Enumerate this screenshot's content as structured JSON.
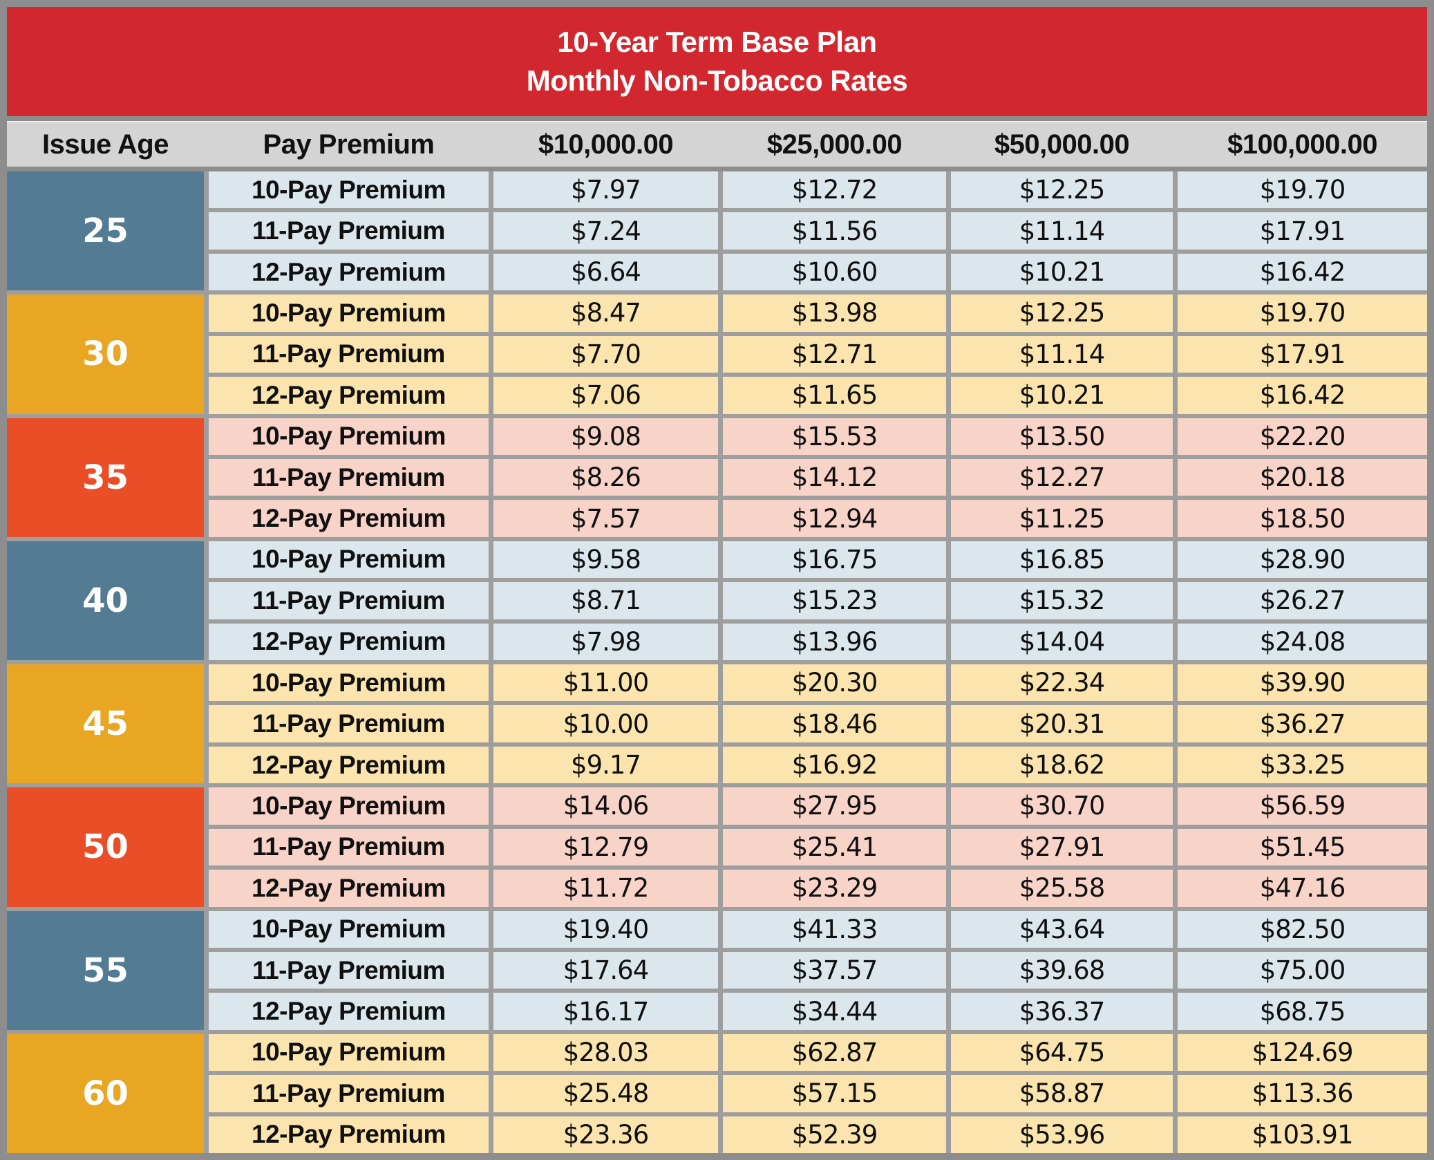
{
  "title": {
    "line1": "10-Year Term Base Plan",
    "line2": "Monthly Non-Tobacco Rates"
  },
  "columns": [
    "Issue Age",
    "Pay Premium",
    "$10,000.00",
    "$25,000.00",
    "$50,000.00",
    "$100,000.00"
  ],
  "row_labels": [
    "10-Pay Premium",
    "11-Pay Premium",
    "12-Pay Premium"
  ],
  "age_groups": [
    {
      "age": "25",
      "theme": "blue",
      "rows": [
        [
          "$7.97",
          "$12.72",
          "$12.25",
          "$19.70"
        ],
        [
          "$7.24",
          "$11.56",
          "$11.14",
          "$17.91"
        ],
        [
          "$6.64",
          "$10.60",
          "$10.21",
          "$16.42"
        ]
      ]
    },
    {
      "age": "30",
      "theme": "yellow",
      "rows": [
        [
          "$8.47",
          "$13.98",
          "$12.25",
          "$19.70"
        ],
        [
          "$7.70",
          "$12.71",
          "$11.14",
          "$17.91"
        ],
        [
          "$7.06",
          "$11.65",
          "$10.21",
          "$16.42"
        ]
      ]
    },
    {
      "age": "35",
      "theme": "red",
      "rows": [
        [
          "$9.08",
          "$15.53",
          "$13.50",
          "$22.20"
        ],
        [
          "$8.26",
          "$14.12",
          "$12.27",
          "$20.18"
        ],
        [
          "$7.57",
          "$12.94",
          "$11.25",
          "$18.50"
        ]
      ]
    },
    {
      "age": "40",
      "theme": "blue",
      "rows": [
        [
          "$9.58",
          "$16.75",
          "$16.85",
          "$28.90"
        ],
        [
          "$8.71",
          "$15.23",
          "$15.32",
          "$26.27"
        ],
        [
          "$7.98",
          "$13.96",
          "$14.04",
          "$24.08"
        ]
      ]
    },
    {
      "age": "45",
      "theme": "yellow",
      "rows": [
        [
          "$11.00",
          "$20.30",
          "$22.34",
          "$39.90"
        ],
        [
          "$10.00",
          "$18.46",
          "$20.31",
          "$36.27"
        ],
        [
          "$9.17",
          "$16.92",
          "$18.62",
          "$33.25"
        ]
      ]
    },
    {
      "age": "50",
      "theme": "red",
      "rows": [
        [
          "$14.06",
          "$27.95",
          "$30.70",
          "$56.59"
        ],
        [
          "$12.79",
          "$25.41",
          "$27.91",
          "$51.45"
        ],
        [
          "$11.72",
          "$23.29",
          "$25.58",
          "$47.16"
        ]
      ]
    },
    {
      "age": "55",
      "theme": "blue",
      "rows": [
        [
          "$19.40",
          "$41.33",
          "$43.64",
          "$82.50"
        ],
        [
          "$17.64",
          "$37.57",
          "$39.68",
          "$75.00"
        ],
        [
          "$16.17",
          "$34.44",
          "$36.37",
          "$68.75"
        ]
      ]
    },
    {
      "age": "60",
      "theme": "yellow",
      "rows": [
        [
          "$28.03",
          "$62.87",
          "$64.75",
          "$124.69"
        ],
        [
          "$25.48",
          "$57.15",
          "$58.87",
          "$113.36"
        ],
        [
          "$23.36",
          "$52.39",
          "$53.96",
          "$103.91"
        ]
      ]
    }
  ],
  "colors": {
    "title_bar": "#d2272e",
    "title_text": "#ffffff",
    "header_band": "#d4d4d4",
    "frame_gray": "#8d8d8d",
    "grid_gap_gray": "#9e9e9e",
    "age_blue": "#537b93",
    "age_yellow": "#e9a622",
    "age_red": "#e94e26",
    "row_blue": "#dbe7ed",
    "row_yellow": "#fbe4ae",
    "row_red": "#f8d3c8"
  },
  "chart_data": {
    "type": "table",
    "title": "10-Year Term Base Plan — Monthly Non-Tobacco Rates",
    "columns": [
      "Issue Age",
      "Pay Premium",
      "$10,000.00",
      "$25,000.00",
      "$50,000.00",
      "$100,000.00"
    ],
    "rows": [
      [
        "25",
        "10-Pay Premium",
        "$7.97",
        "$12.72",
        "$12.25",
        "$19.70"
      ],
      [
        "25",
        "11-Pay Premium",
        "$7.24",
        "$11.56",
        "$11.14",
        "$17.91"
      ],
      [
        "25",
        "12-Pay Premium",
        "$6.64",
        "$10.60",
        "$10.21",
        "$16.42"
      ],
      [
        "30",
        "10-Pay Premium",
        "$8.47",
        "$13.98",
        "$12.25",
        "$19.70"
      ],
      [
        "30",
        "11-Pay Premium",
        "$7.70",
        "$12.71",
        "$11.14",
        "$17.91"
      ],
      [
        "30",
        "12-Pay Premium",
        "$7.06",
        "$11.65",
        "$10.21",
        "$16.42"
      ],
      [
        "35",
        "10-Pay Premium",
        "$9.08",
        "$15.53",
        "$13.50",
        "$22.20"
      ],
      [
        "35",
        "11-Pay Premium",
        "$8.26",
        "$14.12",
        "$12.27",
        "$20.18"
      ],
      [
        "35",
        "12-Pay Premium",
        "$7.57",
        "$12.94",
        "$11.25",
        "$18.50"
      ],
      [
        "40",
        "10-Pay Premium",
        "$9.58",
        "$16.75",
        "$16.85",
        "$28.90"
      ],
      [
        "40",
        "11-Pay Premium",
        "$8.71",
        "$15.23",
        "$15.32",
        "$26.27"
      ],
      [
        "40",
        "12-Pay Premium",
        "$7.98",
        "$13.96",
        "$14.04",
        "$24.08"
      ],
      [
        "45",
        "10-Pay Premium",
        "$11.00",
        "$20.30",
        "$22.34",
        "$39.90"
      ],
      [
        "45",
        "11-Pay Premium",
        "$10.00",
        "$18.46",
        "$20.31",
        "$36.27"
      ],
      [
        "45",
        "12-Pay Premium",
        "$9.17",
        "$16.92",
        "$18.62",
        "$33.25"
      ],
      [
        "50",
        "10-Pay Premium",
        "$14.06",
        "$27.95",
        "$30.70",
        "$56.59"
      ],
      [
        "50",
        "11-Pay Premium",
        "$12.79",
        "$25.41",
        "$27.91",
        "$51.45"
      ],
      [
        "50",
        "12-Pay Premium",
        "$11.72",
        "$23.29",
        "$25.58",
        "$47.16"
      ],
      [
        "55",
        "10-Pay Premium",
        "$19.40",
        "$41.33",
        "$43.64",
        "$82.50"
      ],
      [
        "55",
        "11-Pay Premium",
        "$17.64",
        "$37.57",
        "$39.68",
        "$75.00"
      ],
      [
        "55",
        "12-Pay Premium",
        "$16.17",
        "$34.44",
        "$36.37",
        "$68.75"
      ],
      [
        "60",
        "10-Pay Premium",
        "$28.03",
        "$62.87",
        "$64.75",
        "$124.69"
      ],
      [
        "60",
        "11-Pay Premium",
        "$25.48",
        "$57.15",
        "$58.87",
        "$113.36"
      ],
      [
        "60",
        "12-Pay Premium",
        "$23.36",
        "$52.39",
        "$53.96",
        "$103.91"
      ]
    ]
  }
}
